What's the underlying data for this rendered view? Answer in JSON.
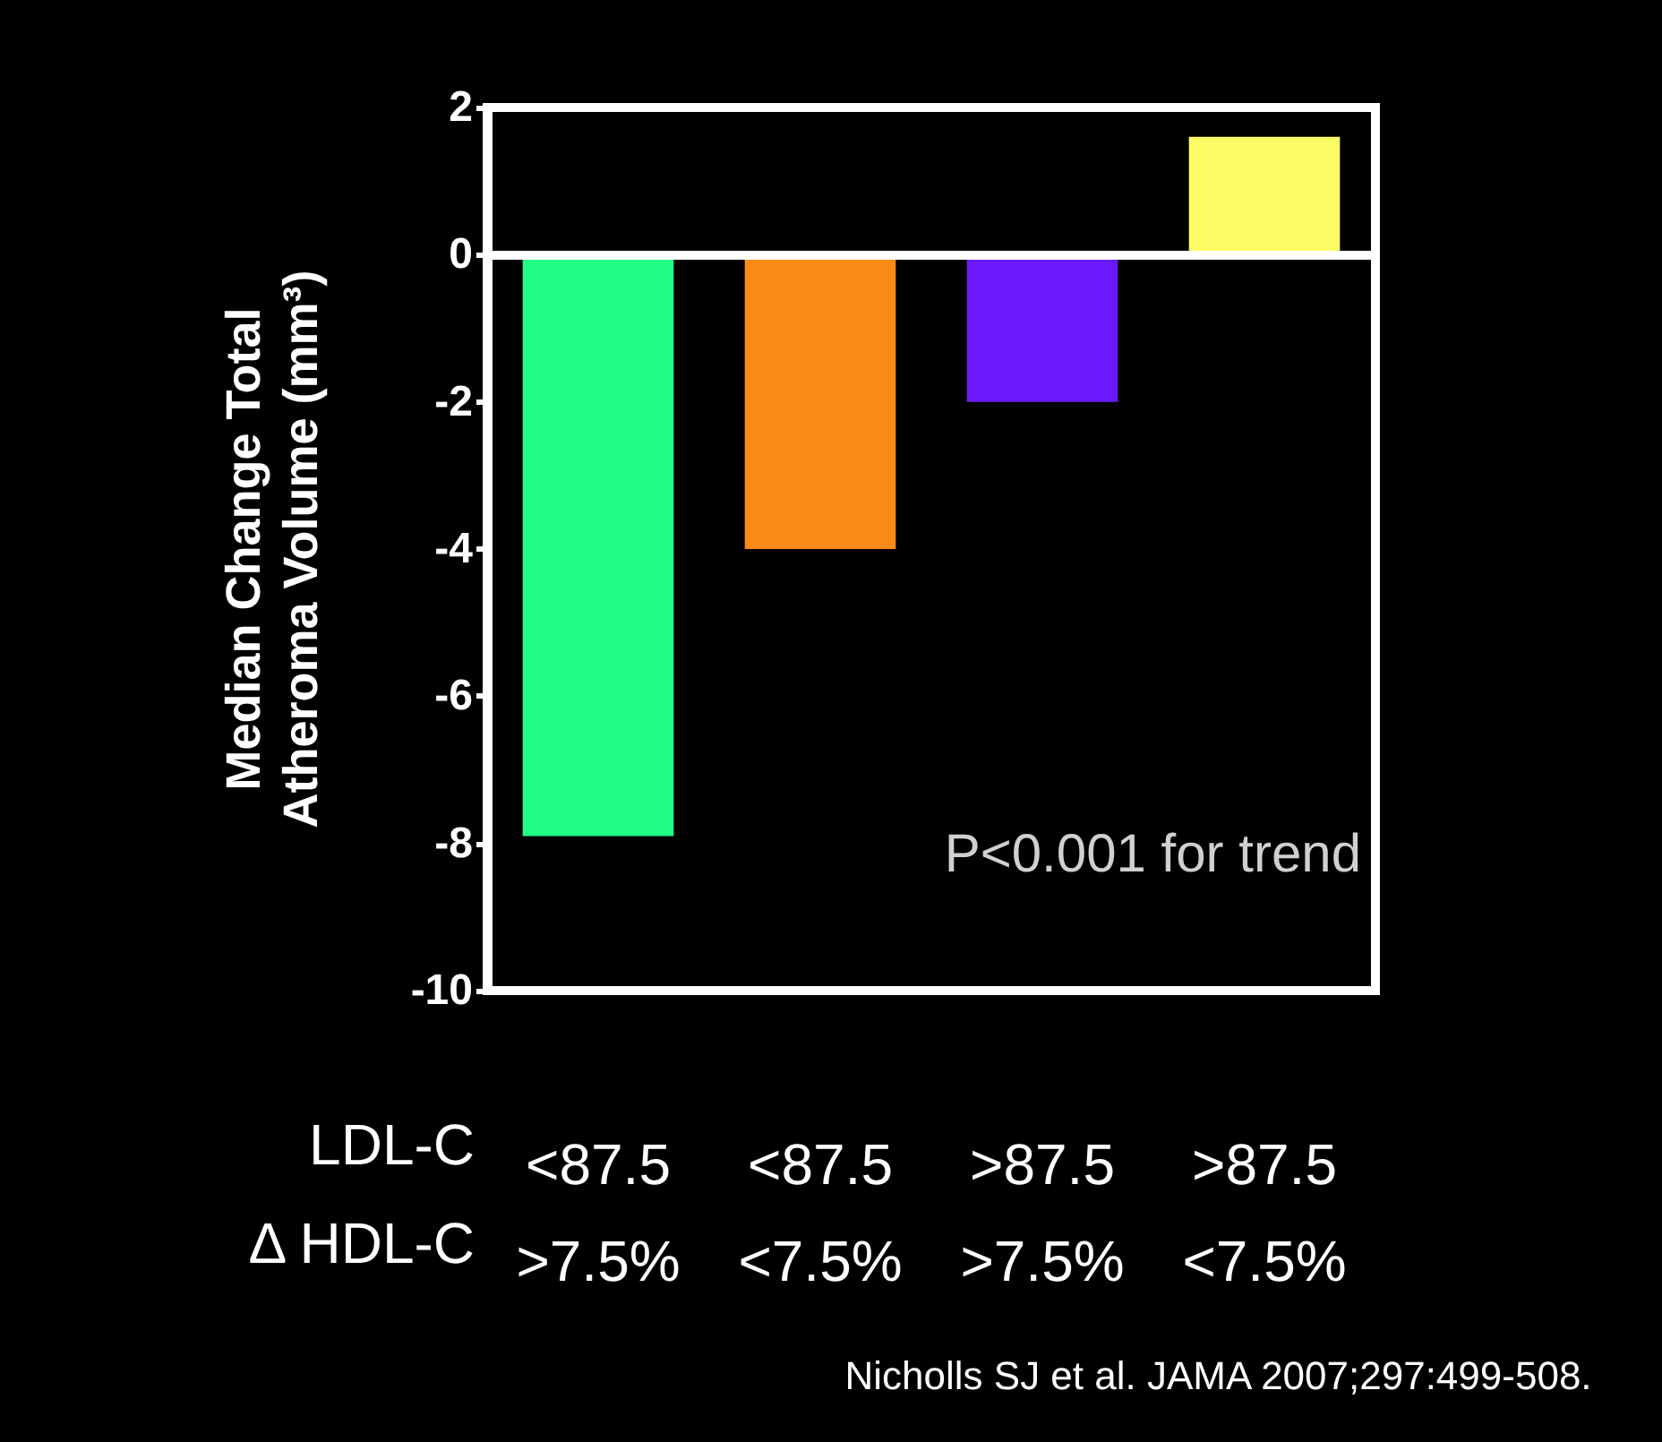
{
  "chart_data": {
    "type": "bar",
    "ylabel": "Median Change Total\nAtheroma Volume (mm³)",
    "categories": [
      "<87.5\n>7.5%",
      "<87.5\n<7.5%",
      ">87.5\n>7.5%",
      ">87.5\n<7.5%"
    ],
    "values": [
      -7.9,
      -4.0,
      -2.0,
      1.6
    ],
    "colors": [
      "#20fc86",
      "#fc8a16",
      "#6a18fc",
      "#fcfc66"
    ],
    "ylim": [
      -10,
      2
    ],
    "yticks": [
      -10,
      -8,
      -6,
      -4,
      -2,
      0,
      2
    ],
    "ref_lines": [
      {
        "axis": "y",
        "value": 0,
        "color": "#ffffff"
      }
    ],
    "annotations": [
      "P<0.001 for trend",
      "LDL-C",
      "Δ HDL-C",
      "Nicholls SJ et al. JAMA 2007;297:499-508."
    ],
    "grid": false
  }
}
